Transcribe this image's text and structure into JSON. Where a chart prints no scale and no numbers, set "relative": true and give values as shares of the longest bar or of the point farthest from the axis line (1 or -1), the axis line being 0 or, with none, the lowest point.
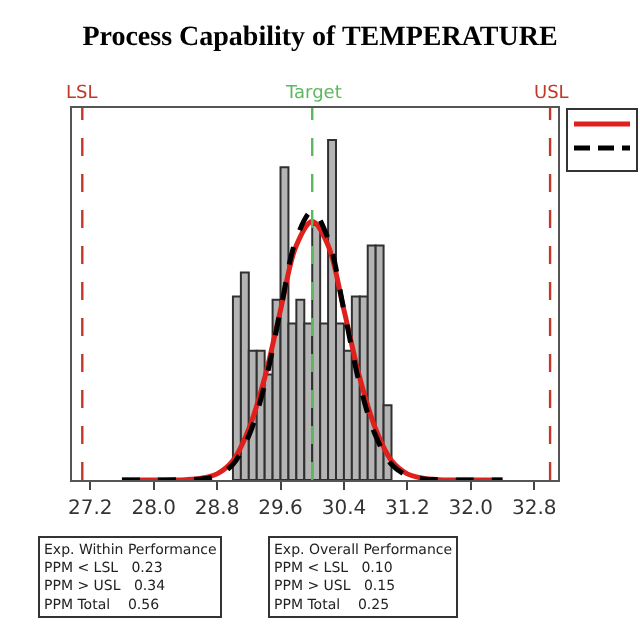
{
  "chart_data": {
    "type": "histogram",
    "title": "Process Capability of TEMPERATURE",
    "relative": true,
    "bins": [
      29.0,
      29.1,
      29.2,
      29.3,
      29.4,
      29.5,
      29.6,
      29.7,
      29.8,
      29.9,
      30.0,
      30.1,
      30.2,
      30.3,
      30.4,
      30.5,
      30.6,
      30.7,
      30.8,
      30.9,
      31.0
    ],
    "series": [
      {
        "color": "#b4b4b4",
        "values": [
          0.54,
          0.61,
          0.38,
          0.38,
          0.31,
          0.53,
          0.92,
          0.46,
          0.53,
          0.46,
          0.75,
          0.46,
          1,
          0.46,
          0.38,
          0.54,
          0.54,
          0.69,
          0.69,
          0.22
        ]
      },
      {
        "type": "line",
        "color": "#e0201c",
        "line_style": "solid",
        "x": [
          27.6,
          28.0,
          28.4,
          28.6,
          28.8,
          29.0,
          29.2,
          29.4,
          29.6,
          29.8,
          30.0,
          30.2,
          30.4,
          30.6,
          30.8,
          31.0,
          31.2,
          31.4,
          31.6,
          32.0,
          32.4
        ],
        "values": [
          0,
          0,
          0.001,
          0.005,
          0.018,
          0.057,
          0.15,
          0.3,
          0.5,
          0.69,
          0.76,
          0.69,
          0.5,
          0.3,
          0.15,
          0.057,
          0.018,
          0.005,
          0.001,
          0,
          0
        ]
      },
      {
        "type": "line",
        "color": "#000000",
        "line_style": "dashed",
        "x": [
          27.6,
          28.0,
          28.4,
          28.6,
          28.8,
          29.0,
          29.2,
          29.4,
          29.6,
          29.8,
          30.0,
          30.2,
          30.4,
          30.6,
          30.8,
          31.0,
          31.2,
          31.4,
          31.6,
          32.0,
          32.4
        ],
        "values": [
          0,
          0,
          0.001,
          0.003,
          0.013,
          0.046,
          0.13,
          0.28,
          0.5,
          0.71,
          0.79,
          0.71,
          0.5,
          0.28,
          0.13,
          0.046,
          0.013,
          0.003,
          0.001,
          0,
          0
        ]
      }
    ],
    "xlim": [
      26.97,
      33.1
    ],
    "xticks": [
      {
        "value": 27.2,
        "label": "27.2"
      },
      {
        "value": 28.0,
        "label": "28.0"
      },
      {
        "value": 28.8,
        "label": "28.8"
      },
      {
        "value": 29.6,
        "label": "29.6"
      },
      {
        "value": 30.4,
        "label": "30.4"
      },
      {
        "value": 31.2,
        "label": "31.2"
      },
      {
        "value": 32.0,
        "label": "32.0"
      },
      {
        "value": 32.8,
        "label": "32.8"
      }
    ],
    "ref_lines": [
      {
        "axis": "x",
        "value": 27.1,
        "label": "LSL",
        "color": "#c0392b",
        "line_style": "dashed"
      },
      {
        "axis": "x",
        "value": 30.0,
        "label": "Target",
        "color": "#5cb85c",
        "line_style": "dashed"
      },
      {
        "axis": "x",
        "value": 33.0,
        "label": "USL",
        "color": "#c0392b",
        "line_style": "dashed"
      }
    ],
    "annotations": [
      "Exp. Within Performance\nPPM < LSL   0.23\nPPM > USL   0.34\nPPM Total    0.56",
      "Exp. Overall Performance\nPPM < LSL   0.10\nPPM > USL   0.15\nPPM Total    0.25"
    ],
    "grid": false,
    "legend": "right"
  }
}
